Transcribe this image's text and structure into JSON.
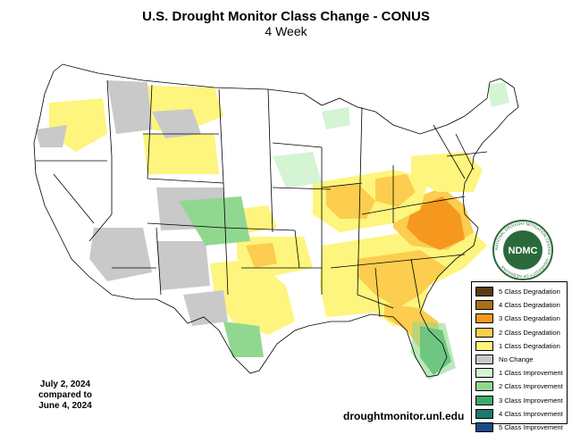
{
  "title": "U.S. Drought Monitor Class Change - CONUS",
  "subtitle": "4 Week",
  "date": {
    "current": "July 2, 2024",
    "compared_label": "compared to",
    "previous": "June 4, 2024"
  },
  "website": "droughtmonitor.unl.edu",
  "logo": {
    "text": "NDMC",
    "ring_text": "NATIONAL DROUGHT MITIGATION CENTER · UNIVERSITY OF NEBRASKA"
  },
  "legend": [
    {
      "label": "5 Class Degradation",
      "color": "#5a3a14"
    },
    {
      "label": "4 Class Degradation",
      "color": "#a8701a"
    },
    {
      "label": "3 Class Degradation",
      "color": "#f7981e"
    },
    {
      "label": "2 Class Degradation",
      "color": "#fccd4e"
    },
    {
      "label": "1 Class Degradation",
      "color": "#fdf57d"
    },
    {
      "label": "No Change",
      "color": "#c9c9c9"
    },
    {
      "label": "1 Class Improvement",
      "color": "#d4f4d4"
    },
    {
      "label": "2 Class Improvement",
      "color": "#90d890"
    },
    {
      "label": "3 Class Improvement",
      "color": "#3caa6a"
    },
    {
      "label": "4 Class Improvement",
      "color": "#1a7a6a"
    },
    {
      "label": "5 Class Improvement",
      "color": "#1a4a8a"
    }
  ]
}
